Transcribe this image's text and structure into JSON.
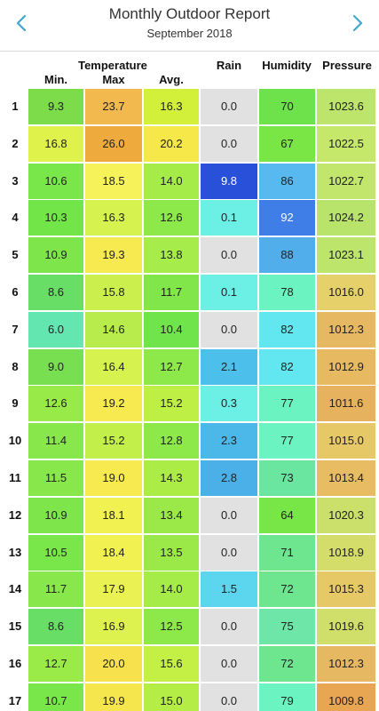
{
  "header": {
    "title": "Monthly Outdoor Report",
    "subtitle": "September 2018",
    "prev_icon": "chevron-left-icon",
    "next_icon": "chevron-right-icon",
    "accent": "#3fa6d0"
  },
  "columns": {
    "group_label": "Temperature",
    "min": "Min.",
    "max": "Max",
    "avg": "Avg.",
    "rain": "Rain",
    "humidity": "Humidity",
    "pressure": "Pressure"
  },
  "rows": [
    {
      "day": "1",
      "min": "9.3",
      "max": "23.7",
      "avg": "16.3",
      "rain": "0.0",
      "humidity": "70",
      "pressure": "1023.6",
      "colors": {
        "min": "#7ddc4a",
        "max": "#f2b94f",
        "avg": "#d2ef3a",
        "rain": "#e1e1e1",
        "humidity": "#6de24a",
        "pressure": "#bde56b"
      }
    },
    {
      "day": "2",
      "min": "16.8",
      "max": "26.0",
      "avg": "20.2",
      "rain": "0.0",
      "humidity": "67",
      "pressure": "1022.5",
      "colors": {
        "min": "#dff24b",
        "max": "#efaa3e",
        "avg": "#f5e848",
        "rain": "#e1e1e1",
        "humidity": "#7ae645",
        "pressure": "#c5e86a"
      }
    },
    {
      "day": "3",
      "min": "10.6",
      "max": "18.5",
      "avg": "14.0",
      "rain": "9.8",
      "humidity": "86",
      "pressure": "1022.7",
      "colors": {
        "min": "#79e64a",
        "max": "#f6f25a",
        "avg": "#a6ec48",
        "rain": "#2850d8",
        "humidity": "#58b9f0",
        "pressure": "#c2e66b"
      }
    },
    {
      "day": "4",
      "min": "10.3",
      "max": "16.3",
      "avg": "12.6",
      "rain": "0.1",
      "humidity": "92",
      "pressure": "1024.2",
      "colors": {
        "min": "#72e648",
        "max": "#d6f24f",
        "avg": "#8de84a",
        "rain": "#6cf0e6",
        "humidity": "#3f7ee6",
        "pressure": "#b9e46b"
      }
    },
    {
      "day": "5",
      "min": "10.9",
      "max": "19.3",
      "avg": "13.8",
      "rain": "0.0",
      "humidity": "88",
      "pressure": "1023.1",
      "colors": {
        "min": "#7ee64b",
        "max": "#f6ea50",
        "avg": "#a6ec4a",
        "rain": "#e1e1e1",
        "humidity": "#52aeea",
        "pressure": "#bde56b"
      }
    },
    {
      "day": "6",
      "min": "8.6",
      "max": "15.8",
      "avg": "11.7",
      "rain": "0.1",
      "humidity": "78",
      "pressure": "1016.0",
      "colors": {
        "min": "#69de67",
        "max": "#cbf04e",
        "avg": "#80e64a",
        "rain": "#6cf0e6",
        "humidity": "#6cf3c2",
        "pressure": "#e6d06a"
      }
    },
    {
      "day": "7",
      "min": "6.0",
      "max": "14.6",
      "avg": "10.4",
      "rain": "0.0",
      "humidity": "82",
      "pressure": "1012.3",
      "colors": {
        "min": "#63e6b0",
        "max": "#b8ec4c",
        "avg": "#70e44b",
        "rain": "#e1e1e1",
        "humidity": "#62e6f0",
        "pressure": "#e7b862"
      }
    },
    {
      "day": "8",
      "min": "9.0",
      "max": "16.4",
      "avg": "12.7",
      "rain": "2.1",
      "humidity": "82",
      "pressure": "1012.9",
      "colors": {
        "min": "#78e050",
        "max": "#d6f24f",
        "avg": "#8de84a",
        "rain": "#4cc0ea",
        "humidity": "#62e6f0",
        "pressure": "#e7ba62"
      }
    },
    {
      "day": "9",
      "min": "12.6",
      "max": "19.2",
      "avg": "15.2",
      "rain": "0.3",
      "humidity": "77",
      "pressure": "1011.6",
      "colors": {
        "min": "#98ea48",
        "max": "#f6ea50",
        "avg": "#bdef45",
        "rain": "#6cf0e6",
        "humidity": "#6cf3c2",
        "pressure": "#e7b25e"
      }
    },
    {
      "day": "10",
      "min": "11.4",
      "max": "15.2",
      "avg": "12.8",
      "rain": "2.3",
      "humidity": "77",
      "pressure": "1015.0",
      "colors": {
        "min": "#88e84b",
        "max": "#c3ef4b",
        "avg": "#8de84a",
        "rain": "#4cb8ea",
        "humidity": "#6cf3c2",
        "pressure": "#e6c866"
      }
    },
    {
      "day": "11",
      "min": "11.5",
      "max": "19.0",
      "avg": "14.3",
      "rain": "2.8",
      "humidity": "73",
      "pressure": "1013.4",
      "colors": {
        "min": "#88e84b",
        "max": "#f6ea50",
        "avg": "#acec46",
        "rain": "#4cb0e8",
        "humidity": "#6ae6a0",
        "pressure": "#e7bc62"
      }
    },
    {
      "day": "12",
      "min": "10.9",
      "max": "18.1",
      "avg": "13.4",
      "rain": "0.0",
      "humidity": "64",
      "pressure": "1020.3",
      "colors": {
        "min": "#7ee64b",
        "max": "#f1f152",
        "avg": "#9ae949",
        "rain": "#e1e1e1",
        "humidity": "#78e646",
        "pressure": "#cbe06a"
      }
    },
    {
      "day": "13",
      "min": "10.5",
      "max": "18.4",
      "avg": "13.5",
      "rain": "0.0",
      "humidity": "71",
      "pressure": "1018.9",
      "colors": {
        "min": "#79e64a",
        "max": "#f1f152",
        "avg": "#9ae949",
        "rain": "#e1e1e1",
        "humidity": "#6ee690",
        "pressure": "#d4dc6a"
      }
    },
    {
      "day": "14",
      "min": "11.7",
      "max": "17.9",
      "avg": "14.0",
      "rain": "1.5",
      "humidity": "72",
      "pressure": "1015.3",
      "colors": {
        "min": "#88e84b",
        "max": "#eaf152",
        "avg": "#a6ec48",
        "rain": "#5cd6ee",
        "humidity": "#6ee690",
        "pressure": "#e6c866"
      }
    },
    {
      "day": "15",
      "min": "8.6",
      "max": "16.9",
      "avg": "12.5",
      "rain": "0.0",
      "humidity": "75",
      "pressure": "1019.6",
      "colors": {
        "min": "#69de67",
        "max": "#ddf24f",
        "avg": "#8de84a",
        "rain": "#e1e1e1",
        "humidity": "#6ee6a8",
        "pressure": "#d0de6a"
      }
    },
    {
      "day": "16",
      "min": "12.7",
      "max": "20.0",
      "avg": "15.6",
      "rain": "0.0",
      "humidity": "72",
      "pressure": "1012.3",
      "colors": {
        "min": "#9aea48",
        "max": "#f7e24d",
        "avg": "#c4ef45",
        "rain": "#e1e1e1",
        "humidity": "#6ee690",
        "pressure": "#e7b862"
      }
    },
    {
      "day": "17",
      "min": "10.7",
      "max": "19.9",
      "avg": "15.0",
      "rain": "0.0",
      "humidity": "79",
      "pressure": "1009.8",
      "colors": {
        "min": "#79e64a",
        "max": "#f6e64e",
        "avg": "#b4ed46",
        "rain": "#e1e1e1",
        "humidity": "#6cf3c2",
        "pressure": "#e8a552"
      }
    }
  ]
}
